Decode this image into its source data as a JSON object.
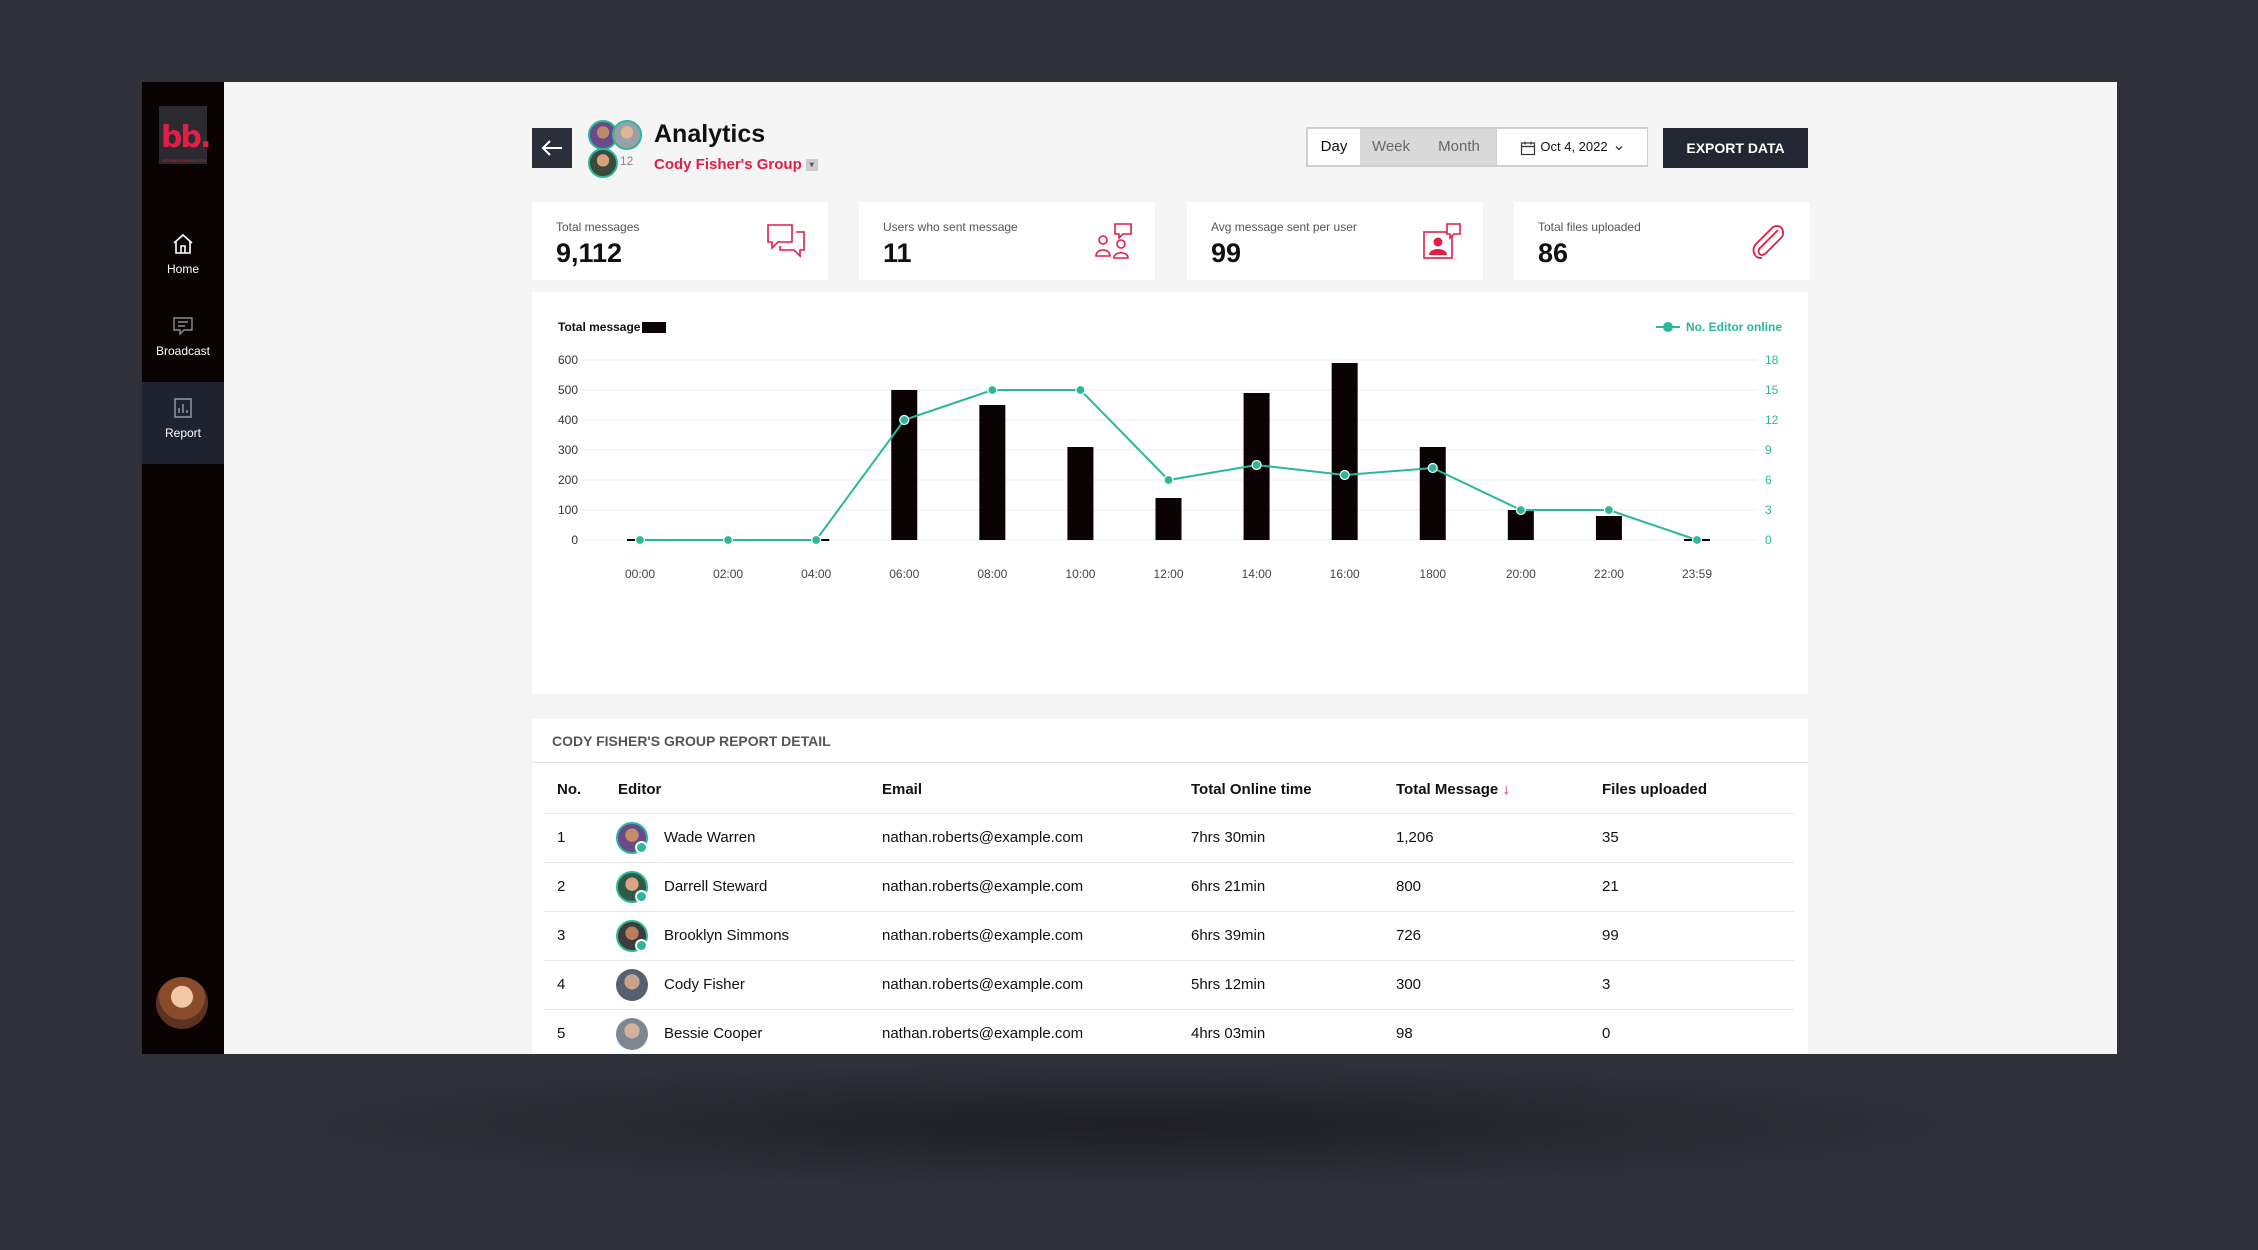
{
  "sidebar": {
    "logo_text": "bb.",
    "logo_subtext": "BOOMBOXNEWS.COM",
    "items": [
      {
        "label": "Home",
        "icon": "home-icon"
      },
      {
        "label": "Broadcast",
        "icon": "broadcast-icon"
      },
      {
        "label": "Report",
        "icon": "report-icon"
      }
    ]
  },
  "header": {
    "title": "Analytics",
    "group_name": "Cody Fisher's Group",
    "member_count": "12"
  },
  "range": {
    "options": [
      "Day",
      "Week",
      "Month"
    ],
    "selected": "Day",
    "date": "Oct 4, 2022"
  },
  "export_label": "EXPORT DATA",
  "stats": [
    {
      "label": "Total messages",
      "value": "9,112",
      "icon": "chat-icon"
    },
    {
      "label": "Users who sent message",
      "value": "11",
      "icon": "users-message-icon"
    },
    {
      "label": "Avg message sent per user",
      "value": "99",
      "icon": "user-message-icon"
    },
    {
      "label": "Total files uploaded",
      "value": "86",
      "icon": "paperclip-icon"
    }
  ],
  "colors": {
    "accent": "#e11d48",
    "teal": "#2bb79a",
    "bar": "#0b0204",
    "dark": "#232733"
  },
  "chart_data": {
    "type": "bar",
    "categories": [
      "00:00",
      "02:00",
      "04:00",
      "06:00",
      "08:00",
      "10:00",
      "12:00",
      "14:00",
      "16:00",
      "1800",
      "20:00",
      "22:00",
      "23:59"
    ],
    "series": [
      {
        "name": "Total message",
        "type": "bar",
        "axis": "left",
        "values": [
          0,
          0,
          0,
          500,
          450,
          310,
          140,
          490,
          590,
          310,
          100,
          80,
          0
        ]
      },
      {
        "name": "No. Editor online",
        "type": "line",
        "axis": "right",
        "values": [
          0,
          0,
          0,
          12,
          15,
          15,
          6,
          7.5,
          6.5,
          7.2,
          3,
          3,
          0
        ]
      }
    ],
    "ylim": [
      0,
      600
    ],
    "yticks": [
      0,
      100,
      200,
      300,
      400,
      500,
      600
    ],
    "y2lim": [
      0,
      18
    ],
    "y2ticks": [
      0,
      3,
      6,
      9,
      12,
      15,
      18
    ],
    "legend_placement": "top",
    "grid": true
  },
  "table": {
    "title": "CODY FISHER'S GROUP REPORT DETAIL",
    "columns": [
      "No.",
      "Editor",
      "Email",
      "Total Online time",
      "Total Message",
      "Files uploaded"
    ],
    "rows": [
      {
        "no": "1",
        "editor": "Wade Warren",
        "email": "nathan.roberts@example.com",
        "online": "7hrs 30min",
        "messages": "1,206",
        "files": "35"
      },
      {
        "no": "2",
        "editor": "Darrell Steward",
        "email": "nathan.roberts@example.com",
        "online": "6hrs 21min",
        "messages": "800",
        "files": "21"
      },
      {
        "no": "3",
        "editor": "Brooklyn Simmons",
        "email": "nathan.roberts@example.com",
        "online": "6hrs 39min",
        "messages": "726",
        "files": "99"
      },
      {
        "no": "4",
        "editor": "Cody Fisher",
        "email": "nathan.roberts@example.com",
        "online": "5hrs 12min",
        "messages": "300",
        "files": "3"
      },
      {
        "no": "5",
        "editor": "Bessie Cooper",
        "email": "nathan.roberts@example.com",
        "online": "4hrs 03min",
        "messages": "98",
        "files": "0"
      }
    ]
  }
}
